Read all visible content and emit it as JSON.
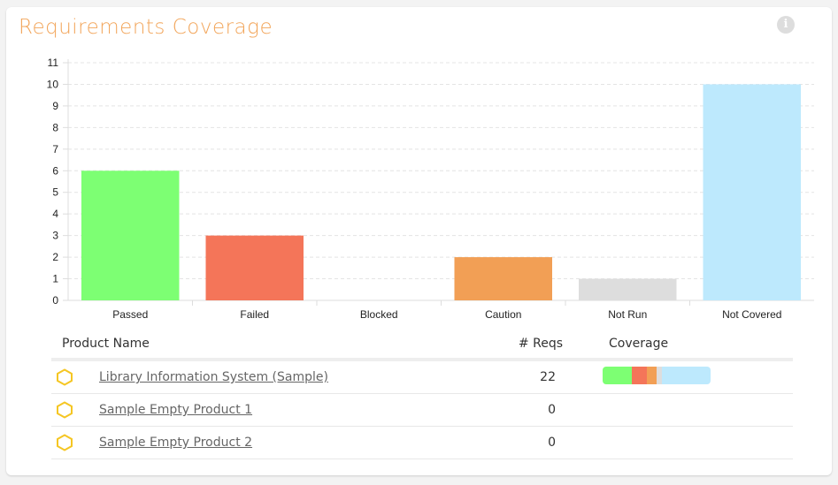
{
  "title": "Requirements Coverage",
  "info_icon": "i",
  "chart_data": {
    "type": "bar",
    "categories": [
      "Passed",
      "Failed",
      "Blocked",
      "Caution",
      "Not Run",
      "Not Covered"
    ],
    "values": [
      6,
      3,
      0,
      2,
      1,
      10
    ],
    "colors": [
      "#7dff73",
      "#f47559",
      "#f7c6c6",
      "#f29f55",
      "#dddddd",
      "#bde9fd"
    ],
    "ylim": [
      0,
      11
    ],
    "yticks": [
      "0",
      "1",
      "2",
      "3",
      "4",
      "5",
      "6",
      "7",
      "8",
      "9",
      "10",
      "11"
    ],
    "grid": true,
    "title": "",
    "xlabel": "",
    "ylabel": ""
  },
  "table": {
    "headers": {
      "name": "Product Name",
      "reqs": "# Reqs",
      "coverage": "Coverage"
    },
    "rows": [
      {
        "name": "Library Information System (Sample)",
        "reqs": "22",
        "coverage": [
          6,
          3,
          0,
          2,
          1,
          10
        ]
      },
      {
        "name": "Sample Empty Product 1",
        "reqs": "0",
        "coverage": []
      },
      {
        "name": "Sample Empty Product 2",
        "reqs": "0",
        "coverage": []
      }
    ]
  }
}
